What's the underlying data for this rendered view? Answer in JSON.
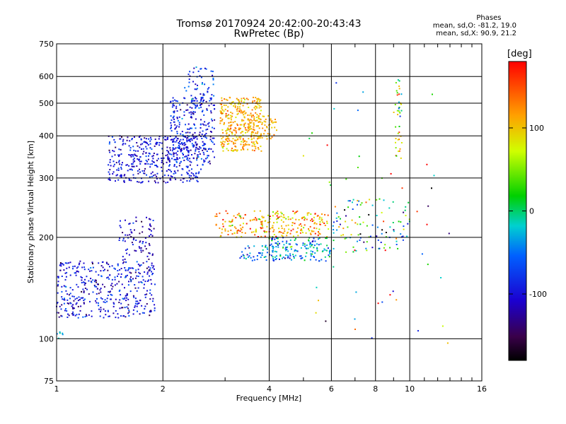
{
  "title_line1": "Tromsø 20170924 20:42:00-20:43:43",
  "title_line2": "RwPretec (Bp)",
  "phases": {
    "title": "Phases",
    "line_o": "mean, sd,O: -81.2, 19.0",
    "line_x": "mean, sd,X:  90.9, 21.2"
  },
  "colorbar": {
    "label": "[deg]",
    "ticks": [
      100,
      0,
      -100
    ],
    "range": [
      -180,
      180
    ]
  },
  "chart_data": {
    "type": "scatter",
    "xlabel": "Frequency [MHz]",
    "ylabel": "Stationary phase Virtual Height [km]",
    "xscale": "log",
    "yscale": "log",
    "xlim": [
      1,
      16
    ],
    "ylim": [
      75,
      750
    ],
    "x_ticks": [
      1,
      2,
      4,
      6,
      8,
      10,
      16
    ],
    "y_ticks": [
      75,
      100,
      200,
      300,
      400,
      500,
      600,
      750
    ],
    "grid": true,
    "clusters": [
      {
        "x_range": [
          1.0,
          1.9
        ],
        "y_range": [
          115,
          170
        ],
        "phase_mean": -100,
        "phase_sd": 25,
        "count": 420
      },
      {
        "x_range": [
          1.5,
          1.9
        ],
        "y_range": [
          170,
          230
        ],
        "phase_mean": -110,
        "phase_sd": 20,
        "count": 80
      },
      {
        "x_range": [
          1.0,
          1.05
        ],
        "y_range": [
          100,
          105
        ],
        "phase_mean": -30,
        "phase_sd": 10,
        "count": 6
      },
      {
        "x_range": [
          1.4,
          2.6
        ],
        "y_range": [
          290,
          400
        ],
        "phase_mean": -100,
        "phase_sd": 20,
        "count": 420
      },
      {
        "x_range": [
          2.1,
          2.8
        ],
        "y_range": [
          330,
          520
        ],
        "phase_mean": -90,
        "phase_sd": 25,
        "count": 260
      },
      {
        "x_range": [
          2.3,
          2.8
        ],
        "y_range": [
          480,
          640
        ],
        "phase_mean": -80,
        "phase_sd": 25,
        "count": 60
      },
      {
        "x_range": [
          2.9,
          3.8
        ],
        "y_range": [
          360,
          520
        ],
        "phase_mean": 110,
        "phase_sd": 20,
        "count": 320
      },
      {
        "x_range": [
          3.4,
          4.2
        ],
        "y_range": [
          390,
          460
        ],
        "phase_mean": 110,
        "phase_sd": 15,
        "count": 80
      },
      {
        "x_range": [
          2.8,
          5.9
        ],
        "y_range": [
          200,
          240
        ],
        "phase_mean": 120,
        "phase_sd": 40,
        "count": 260
      },
      {
        "x_range": [
          4.0,
          6.0
        ],
        "y_range": [
          170,
          200
        ],
        "phase_mean": -40,
        "phase_sd": 40,
        "count": 150
      },
      {
        "x_range": [
          3.3,
          4.2
        ],
        "y_range": [
          170,
          190
        ],
        "phase_mean": -50,
        "phase_sd": 30,
        "count": 50
      },
      {
        "x_range": [
          6.0,
          10.0
        ],
        "y_range": [
          180,
          260
        ],
        "phase_mean": -20,
        "phase_sd": 90,
        "count": 110
      },
      {
        "x_range": [
          9.1,
          9.5
        ],
        "y_range": [
          330,
          590
        ],
        "phase_mean": 60,
        "phase_sd": 60,
        "count": 40
      },
      {
        "x_range": [
          4.8,
          13.5
        ],
        "y_range": [
          90,
          600
        ],
        "phase_mean": 20,
        "phase_sd": 110,
        "count": 50
      }
    ]
  }
}
